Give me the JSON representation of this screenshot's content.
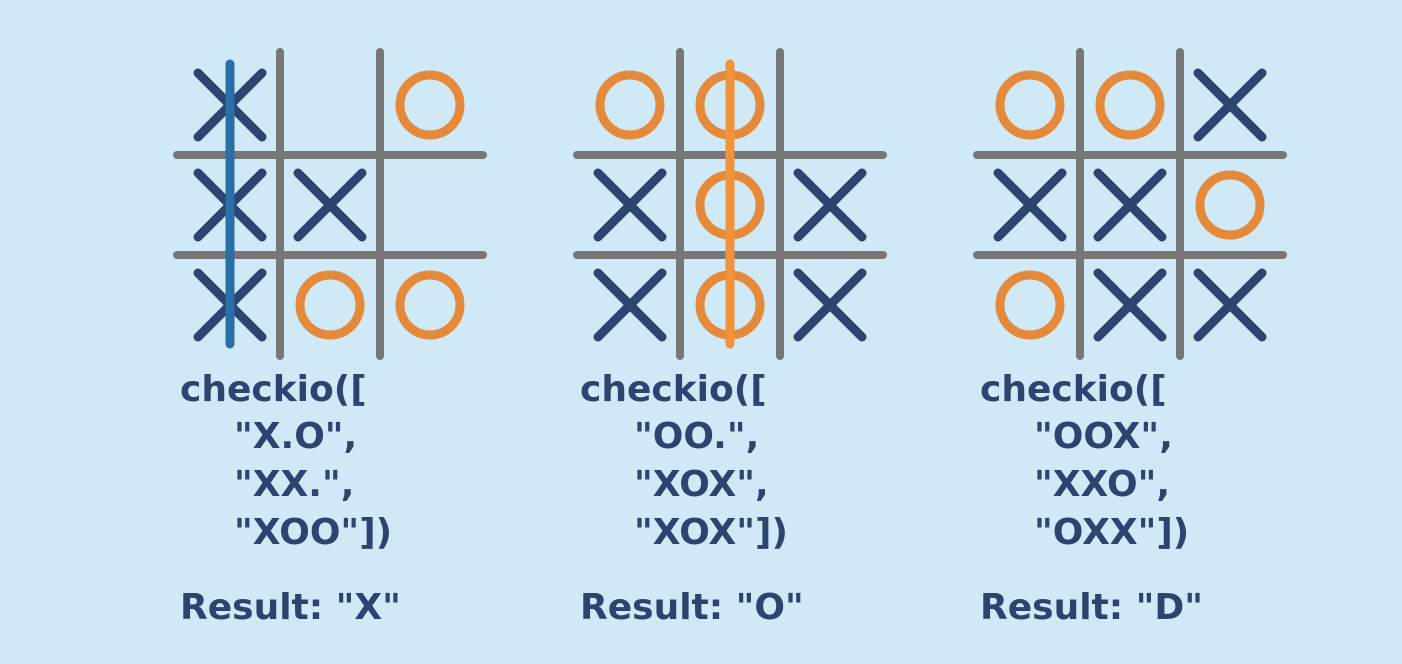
{
  "panels": [
    {
      "code_open": "checkio([",
      "lines": [
        "\"X.O\",",
        "\"XX.\",",
        "\"XOO\"])"
      ],
      "result": "Result: \"X\"",
      "win_line": {
        "column": 0,
        "color": "#2a6ea8"
      }
    },
    {
      "code_open": "checkio([",
      "lines": [
        "\"OO.\",",
        "\"XOX\",",
        "\"XOX\"])"
      ],
      "result": "Result: \"O\"",
      "win_line": {
        "column": 1,
        "color": "#f0933a"
      }
    },
    {
      "code_open": "checkio([",
      "lines": [
        "\"OOX\",",
        "\"XXO\",",
        "\"OXX\"])"
      ],
      "result": "Result: \"D\""
    }
  ]
}
